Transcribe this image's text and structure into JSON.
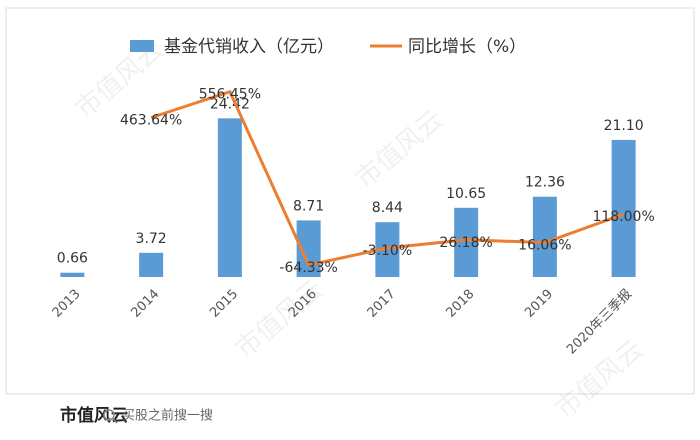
{
  "chart_data": {
    "type": "bar",
    "categories": [
      "2013",
      "2014",
      "2015",
      "2016",
      "2017",
      "2018",
      "2019",
      "2020年三季报"
    ],
    "series": [
      {
        "name": "基金代销收入（亿元）",
        "color": "#5b9bd5",
        "type": "bar",
        "values": [
          0.66,
          3.72,
          24.42,
          8.71,
          8.44,
          10.65,
          12.36,
          21.1
        ],
        "value_labels": [
          "0.66",
          "3.72",
          "24.42",
          "8.71",
          "8.44",
          "10.65",
          "12.36",
          "21.10"
        ]
      },
      {
        "name": "同比增长（%）",
        "color": "#ed7d31",
        "type": "line",
        "axis": "y2",
        "values": [
          null,
          463.64,
          556.45,
          -64.33,
          -3.1,
          26.18,
          16.06,
          118.0
        ],
        "value_labels": [
          null,
          "463.64%",
          "556.45%",
          "-64.33%",
          "-3.10%",
          "26.18%",
          "16.06%",
          "118.00%"
        ]
      }
    ],
    "ylim": [
      0,
      33.4
    ],
    "y2lim": [
      -107,
      670
    ],
    "watermark": "市值风云"
  },
  "footer": {
    "logo": "市值风云",
    "search": "买股之前搜一搜"
  }
}
